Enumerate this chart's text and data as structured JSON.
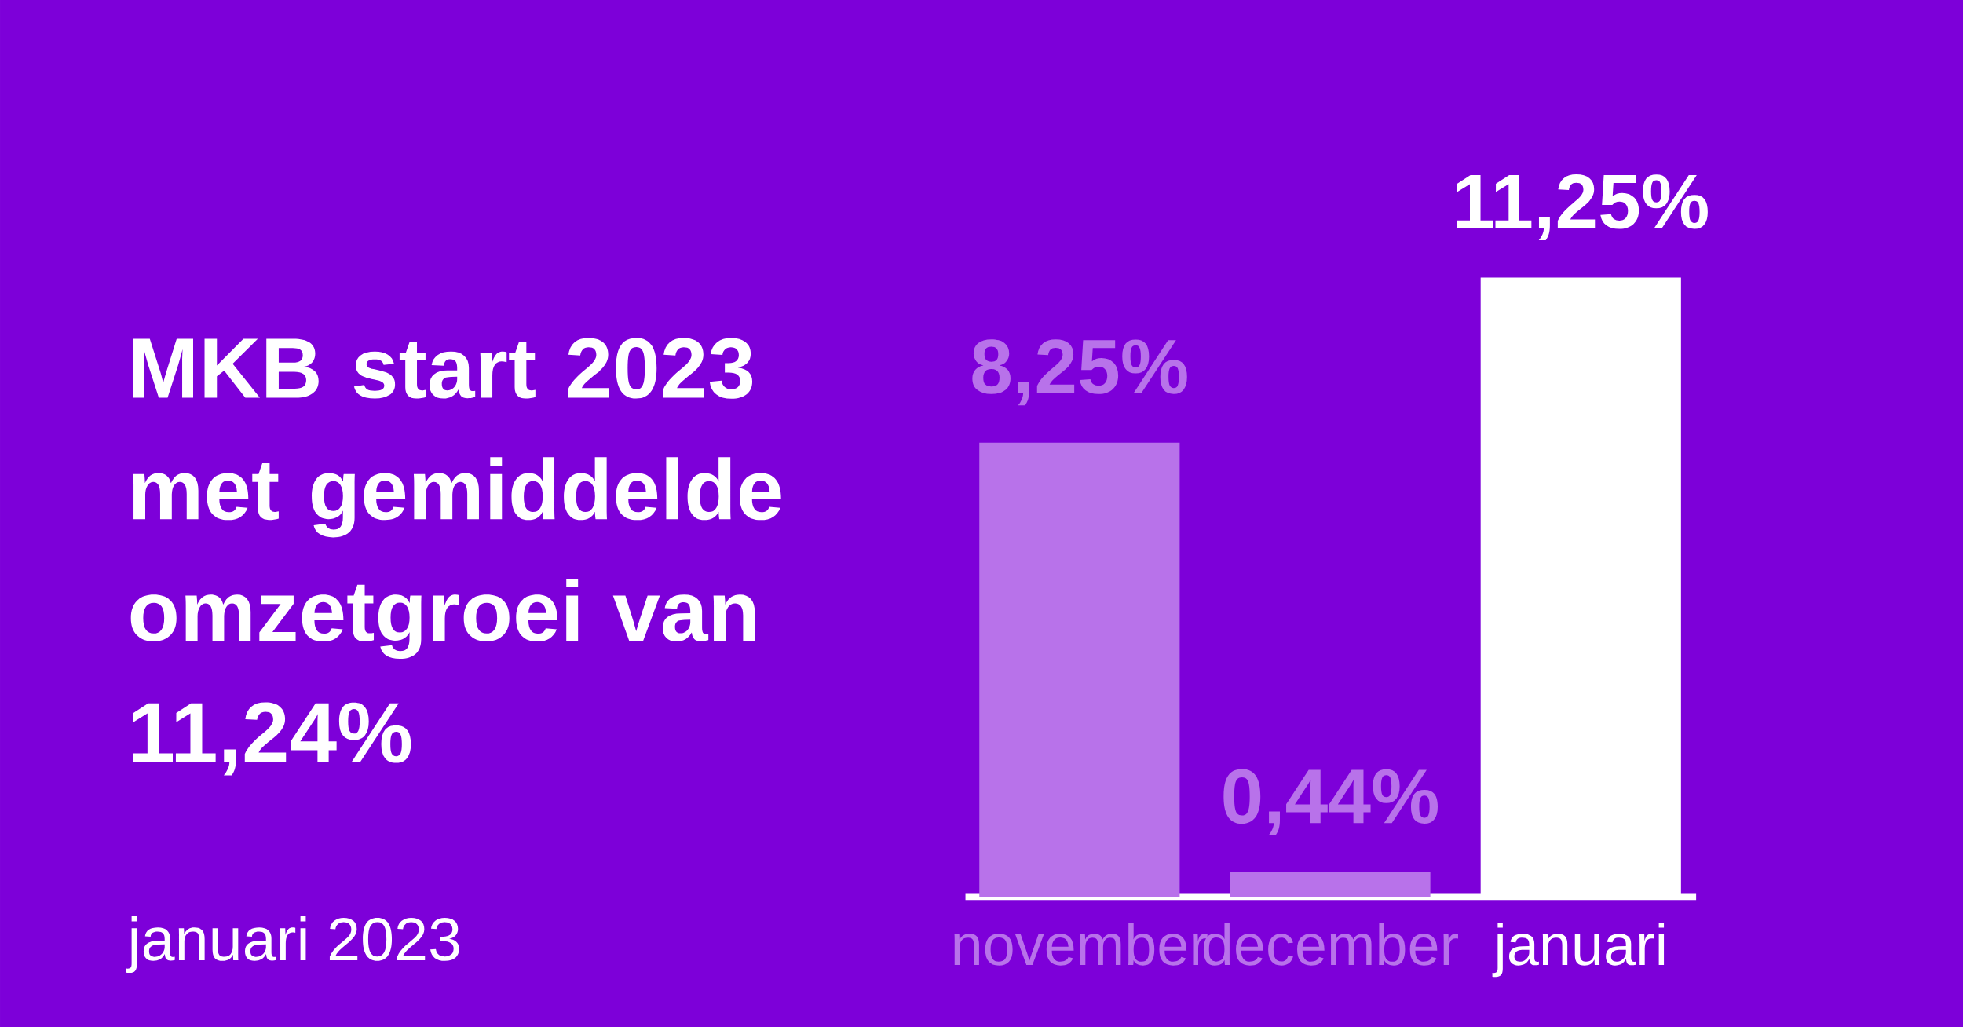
{
  "chart_data": {
    "type": "bar",
    "title": "MKB start 2023 met gemiddelde omzetgroei van 11,24%",
    "categories": [
      "november",
      "december",
      "januari"
    ],
    "values": [
      8.25,
      0.44,
      11.25
    ],
    "value_labels": [
      "8,25%",
      "0,44%",
      "11,25%"
    ],
    "colors": [
      "#b872ea",
      "#b872ea",
      "#ffffff"
    ],
    "annotations": [
      "januari 2023"
    ]
  }
}
